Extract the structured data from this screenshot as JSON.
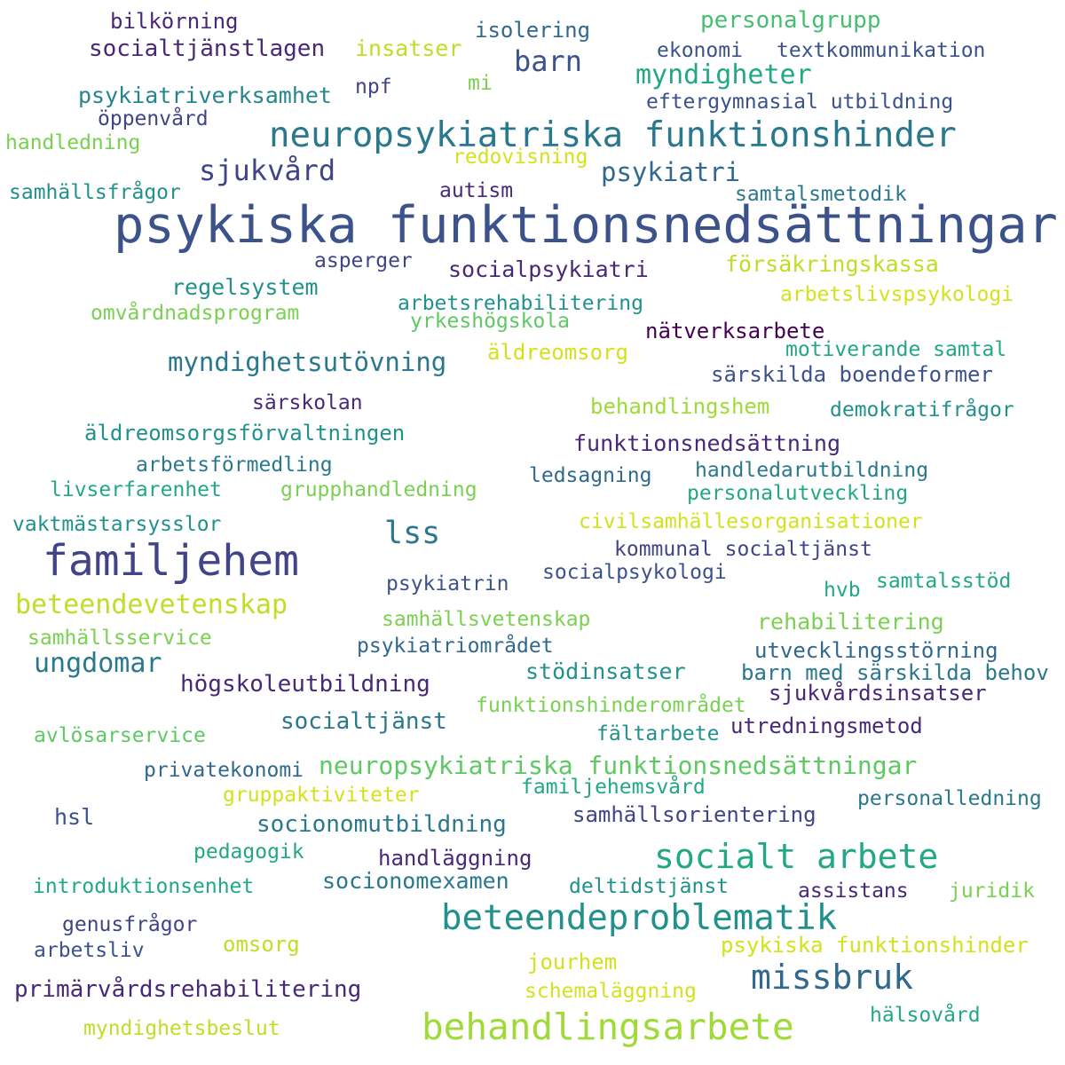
{
  "words": [
    {
      "text": "psykiska funktionsnedsättningar",
      "color": "#3b528b"
    },
    {
      "text": "familjehem",
      "color": "#414487"
    },
    {
      "text": "neuropsykiatriska funktionshinder",
      "color": "#2a788e"
    },
    {
      "text": "behandlingsarbete",
      "color": "#a0da39"
    },
    {
      "text": "beteendeproblematik",
      "color": "#21918c"
    },
    {
      "text": "socialt arbete",
      "color": "#22a884"
    },
    {
      "text": "missbruk",
      "color": "#31688e"
    },
    {
      "text": "neuropsykiatriska funktionsnedsättningar",
      "color": "#5ec962"
    },
    {
      "text": "lss",
      "color": "#2a788e"
    },
    {
      "text": "beteendevetenskap",
      "color": "#bddf26"
    },
    {
      "text": "myndighetsutövning",
      "color": "#2a788e"
    },
    {
      "text": "sjukvård",
      "color": "#414487"
    },
    {
      "text": "barn",
      "color": "#3b528b"
    },
    {
      "text": "ungdomar",
      "color": "#2a788e"
    },
    {
      "text": "myndigheter",
      "color": "#22a884"
    },
    {
      "text": "primärvårdsrehabilitering",
      "color": "#482878"
    },
    {
      "text": "socialtjänstlagen",
      "color": "#482878"
    },
    {
      "text": "psykiatri",
      "color": "#31688e"
    },
    {
      "text": "personalgrupp",
      "color": "#44bf70"
    },
    {
      "text": "psykiatriverksamhet",
      "color": "#25858e"
    },
    {
      "text": "socialtjänst",
      "color": "#2a788e"
    },
    {
      "text": "högskoleutbildning",
      "color": "#482878"
    },
    {
      "text": "socionomutbildning",
      "color": "#2a788e"
    },
    {
      "text": "socialpsykiatri",
      "color": "#482878"
    },
    {
      "text": "försäkringskassa",
      "color": "#bddf26"
    },
    {
      "text": "funktionsnedsättning",
      "color": "#482878"
    },
    {
      "text": "äldreomsorgsförvaltningen",
      "color": "#21918c"
    },
    {
      "text": "regelsystem",
      "color": "#21918c"
    },
    {
      "text": "socionomexamen",
      "color": "#2a788e"
    },
    {
      "text": "insatser",
      "color": "#bddf26"
    },
    {
      "text": "stödinsatser",
      "color": "#21918c"
    },
    {
      "text": "rehabilitering",
      "color": "#7ad151"
    },
    {
      "text": "äldreomsorg",
      "color": "#d2e21b"
    },
    {
      "text": "bilkörning",
      "color": "#482878"
    },
    {
      "text": "jourhem",
      "color": "#d2e21b"
    },
    {
      "text": "omsorg",
      "color": "#bddf26"
    },
    {
      "text": "nätverksarbete",
      "color": "#440154"
    },
    {
      "text": "behandlingshem",
      "color": "#a0da39"
    },
    {
      "text": "särskilda boendeformer",
      "color": "#3b528b"
    },
    {
      "text": "utvecklingsstörning",
      "color": "#31688e"
    },
    {
      "text": "barn med särskilda behov",
      "color": "#2a788e"
    },
    {
      "text": "handläggning",
      "color": "#482878"
    },
    {
      "text": "psykiska funktionshinder",
      "color": "#d2e21b"
    },
    {
      "text": "samhällsorientering",
      "color": "#414487"
    },
    {
      "text": "utredningsmetod",
      "color": "#482878"
    },
    {
      "text": "sjukvårdsinsatser",
      "color": "#482878"
    },
    {
      "text": "isolering",
      "color": "#31688e"
    },
    {
      "text": "ekonomi",
      "color": "#3b528b"
    },
    {
      "text": "textkommunikation",
      "color": "#3b528b"
    },
    {
      "text": "mi",
      "color": "#7ad151"
    },
    {
      "text": "npf",
      "color": "#414487"
    },
    {
      "text": "eftergymnasial utbildning",
      "color": "#3b528b"
    },
    {
      "text": "öppenvård",
      "color": "#414487"
    },
    {
      "text": "handledning",
      "color": "#7ad151"
    },
    {
      "text": "redovisning",
      "color": "#d2e21b"
    },
    {
      "text": "samhällsfrågor",
      "color": "#21918c"
    },
    {
      "text": "autism",
      "color": "#482878"
    },
    {
      "text": "samtalsmetodik",
      "color": "#2a788e"
    },
    {
      "text": "asperger",
      "color": "#414487"
    },
    {
      "text": "arbetslivspsykologi",
      "color": "#d2e21b"
    },
    {
      "text": "omvårdnadsprogram",
      "color": "#7ad151"
    },
    {
      "text": "arbetsrehabilitering",
      "color": "#21918c"
    },
    {
      "text": "yrkeshögskola",
      "color": "#5ec962"
    },
    {
      "text": "motiverande samtal",
      "color": "#22a884"
    },
    {
      "text": "särskolan",
      "color": "#482878"
    },
    {
      "text": "demokratifrågor",
      "color": "#21918c"
    },
    {
      "text": "arbetsförmedling",
      "color": "#2a788e"
    },
    {
      "text": "handledarutbildning",
      "color": "#2a788e"
    },
    {
      "text": "livserfarenhet",
      "color": "#22a884"
    },
    {
      "text": "grupphandledning",
      "color": "#7ad151"
    },
    {
      "text": "ledsagning",
      "color": "#31688e"
    },
    {
      "text": "personalutveckling",
      "color": "#22a884"
    },
    {
      "text": "vaktmästarsysslor",
      "color": "#21918c"
    },
    {
      "text": "civilsamhällesorganisationer",
      "color": "#d2e21b"
    },
    {
      "text": "kommunal socialtjänst",
      "color": "#414487"
    },
    {
      "text": "psykiatrin",
      "color": "#3b528b"
    },
    {
      "text": "socialpsykologi",
      "color": "#3b528b"
    },
    {
      "text": "hvb",
      "color": "#22a884"
    },
    {
      "text": "samtalsstöd",
      "color": "#22a884"
    },
    {
      "text": "samhällsvetenskap",
      "color": "#7ad151"
    },
    {
      "text": "samhällsservice",
      "color": "#7ad151"
    },
    {
      "text": "psykiatriområdet",
      "color": "#31688e"
    },
    {
      "text": "funktionshinderområdet",
      "color": "#7ad151"
    },
    {
      "text": "avlösarservice",
      "color": "#5ec962"
    },
    {
      "text": "fältarbete",
      "color": "#21918c"
    },
    {
      "text": "privatekonomi",
      "color": "#31688e"
    },
    {
      "text": "gruppaktiviteter",
      "color": "#d2e21b"
    },
    {
      "text": "familjehemsvård",
      "color": "#22a884"
    },
    {
      "text": "hsl",
      "color": "#3b528b"
    },
    {
      "text": "personalledning",
      "color": "#2a788e"
    },
    {
      "text": "pedagogik",
      "color": "#22a884"
    },
    {
      "text": "introduktionsenhet",
      "color": "#22a884"
    },
    {
      "text": "deltidstjänst",
      "color": "#21918c"
    },
    {
      "text": "assistans",
      "color": "#482878"
    },
    {
      "text": "juridik",
      "color": "#7ad151"
    },
    {
      "text": "genusfrågor",
      "color": "#414487"
    },
    {
      "text": "arbetsliv",
      "color": "#3b528b"
    },
    {
      "text": "schemaläggning",
      "color": "#d2e21b"
    },
    {
      "text": "hälsovård",
      "color": "#22a884"
    },
    {
      "text": "myndighetsbeslut",
      "color": "#bddf26"
    }
  ]
}
